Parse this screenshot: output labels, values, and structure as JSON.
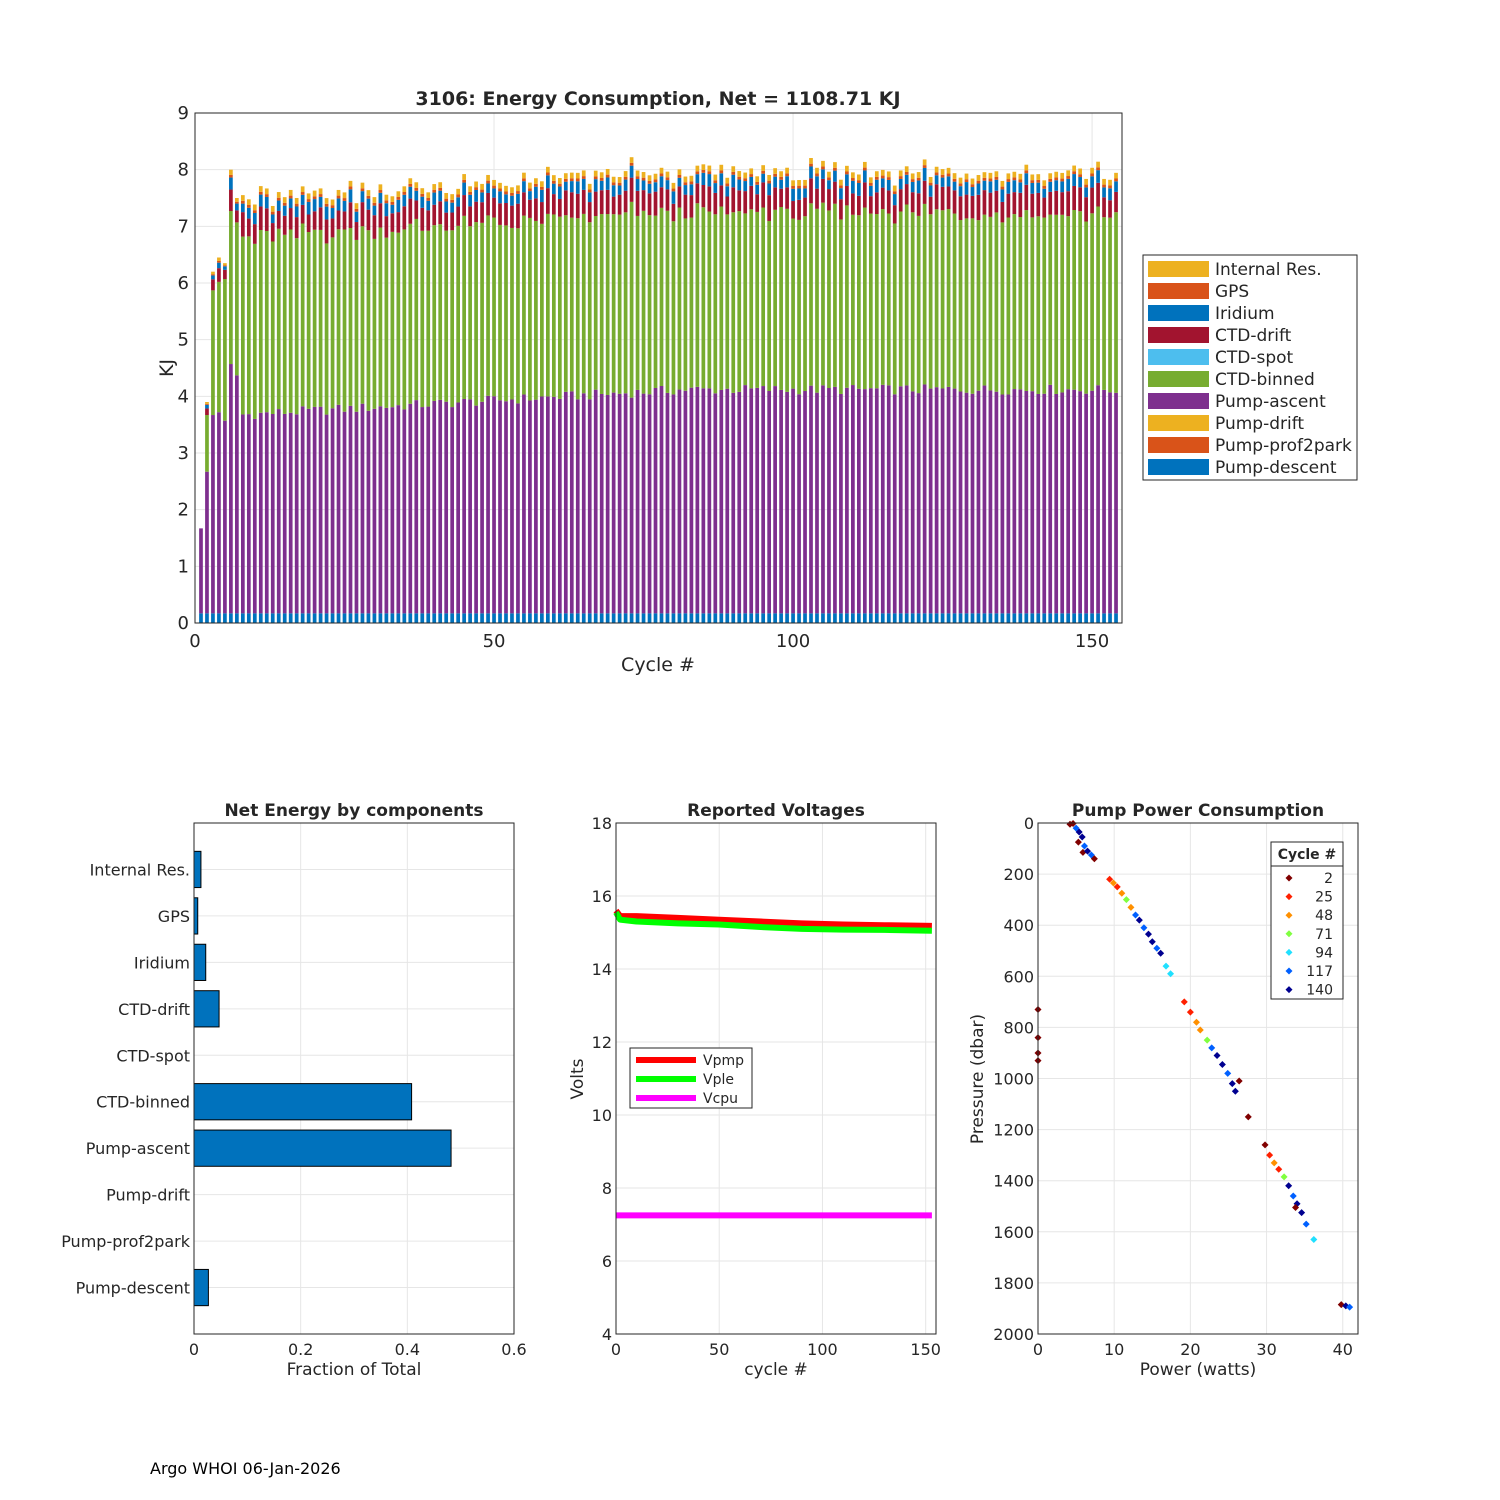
{
  "footer": "Argo WHOI 06-Jan-2026",
  "chart_data": [
    {
      "type": "bar",
      "stacked": true,
      "title": "3106: Energy Consumption,  Net = 1108.71 KJ",
      "xlabel": "Cycle #",
      "ylabel": "KJ",
      "xlim": [
        0,
        155
      ],
      "ylim": [
        0,
        9
      ],
      "xticks": [
        0,
        50,
        100,
        150
      ],
      "yticks": [
        0,
        1,
        2,
        3,
        4,
        5,
        6,
        7,
        8,
        9
      ],
      "grid": true,
      "legend_position": "right",
      "cycles": {
        "first": 1,
        "last": 154
      },
      "series": [
        {
          "name": "Pump-descent",
          "color": "#0072BD",
          "typical": 0.17
        },
        {
          "name": "Pump-prof2park",
          "color": "#D95319",
          "typical": 0.0
        },
        {
          "name": "Pump-drift",
          "color": "#EDB120",
          "typical": 0.0
        },
        {
          "name": "Pump-ascent",
          "color": "#7E2F8E",
          "typical": 3.75
        },
        {
          "name": "CTD-binned",
          "color": "#77AC30",
          "typical": 3.1
        },
        {
          "name": "CTD-spot",
          "color": "#4DBEEE",
          "typical": 0.0
        },
        {
          "name": "CTD-drift",
          "color": "#A2142F",
          "typical": 0.35
        },
        {
          "name": "Iridium",
          "color": "#0072BD",
          "typical": 0.17
        },
        {
          "name": "GPS",
          "color": "#D95319",
          "typical": 0.05
        },
        {
          "name": "Internal Res.",
          "color": "#EDB120",
          "typical": 0.1
        }
      ],
      "early_cycles": [
        {
          "cycle": 1,
          "pump_ascent": 1.5,
          "ctd_binned": 0.0,
          "total": 1.65
        },
        {
          "cycle": 2,
          "pump_ascent": 2.5,
          "ctd_binned": 1.0,
          "total": 3.9
        },
        {
          "cycle": 3,
          "pump_ascent": 3.5,
          "ctd_binned": 2.2,
          "total": 6.2
        },
        {
          "cycle": 4,
          "pump_ascent": 3.55,
          "ctd_binned": 2.3,
          "total": 6.45
        },
        {
          "cycle": 5,
          "pump_ascent": 3.4,
          "ctd_binned": 2.5,
          "total": 6.35
        },
        {
          "cycle": 6,
          "pump_ascent": 4.4,
          "ctd_binned": 2.7,
          "total": 8.0
        },
        {
          "cycle": 7,
          "pump_ascent": 4.2,
          "ctd_binned": 2.7,
          "total": 7.5
        }
      ],
      "notable_totals": [
        {
          "cycle": 73,
          "total": 8.22
        },
        {
          "cycle": 148,
          "total": 8.02
        }
      ]
    },
    {
      "type": "bar",
      "orientation": "horizontal",
      "title": "Net Energy by components",
      "xlabel": "Fraction of Total",
      "xlim": [
        0,
        0.6
      ],
      "xticks": [
        0,
        0.2,
        0.4,
        0.6
      ],
      "grid": true,
      "color": "#0072BD",
      "categories": [
        "Internal Res.",
        "GPS",
        "Iridium",
        "CTD-drift",
        "CTD-spot",
        "CTD-binned",
        "Pump-ascent",
        "Pump-drift",
        "Pump-prof2park",
        "Pump-descent"
      ],
      "values": [
        0.013,
        0.007,
        0.022,
        0.047,
        0.0,
        0.408,
        0.482,
        0.0,
        0.0,
        0.027
      ]
    },
    {
      "type": "line",
      "title": "Reported Voltages",
      "xlabel": "cycle #",
      "ylabel": "Volts",
      "xlim": [
        0,
        155
      ],
      "ylim": [
        4,
        18
      ],
      "xticks": [
        0,
        50,
        100,
        150
      ],
      "yticks": [
        4,
        6,
        8,
        10,
        12,
        14,
        16,
        18
      ],
      "grid": true,
      "legend_position": "center-left",
      "series": [
        {
          "name": "Vpmp",
          "color": "#FF0000",
          "x": [
            0,
            2,
            10,
            30,
            50,
            70,
            90,
            110,
            130,
            153
          ],
          "values": [
            15.6,
            15.45,
            15.45,
            15.4,
            15.35,
            15.3,
            15.25,
            15.22,
            15.2,
            15.18
          ]
        },
        {
          "name": "Vple",
          "color": "#00FF00",
          "x": [
            0,
            2,
            10,
            30,
            50,
            70,
            90,
            110,
            130,
            153
          ],
          "values": [
            15.55,
            15.35,
            15.3,
            15.25,
            15.22,
            15.15,
            15.1,
            15.08,
            15.07,
            15.05
          ]
        },
        {
          "name": "Vcpu",
          "color": "#FF00FF",
          "x": [
            0,
            50,
            100,
            153
          ],
          "values": [
            7.25,
            7.25,
            7.25,
            7.25
          ]
        }
      ]
    },
    {
      "type": "scatter",
      "title": "Pump Power Consumption",
      "xlabel": "Power (watts)",
      "ylabel": "Pressure (dbar)",
      "xlim": [
        0,
        42
      ],
      "ylim": [
        0,
        2000
      ],
      "y_reversed": true,
      "xticks": [
        0,
        10,
        20,
        30,
        40
      ],
      "yticks": [
        0,
        200,
        400,
        600,
        800,
        1000,
        1200,
        1400,
        1600,
        1800,
        2000
      ],
      "grid": true,
      "legend_title": "Cycle #",
      "legend_position": "top-right",
      "legend": [
        {
          "label": "2",
          "color": "#800000"
        },
        {
          "label": "25",
          "color": "#FF2000"
        },
        {
          "label": "48",
          "color": "#FF9000"
        },
        {
          "label": "71",
          "color": "#80FF40"
        },
        {
          "label": "94",
          "color": "#20E0FF"
        },
        {
          "label": "117",
          "color": "#0060FF"
        },
        {
          "label": "140",
          "color": "#000090"
        }
      ],
      "points": [
        {
          "power": 4.2,
          "pressure": 5,
          "color": "#800000"
        },
        {
          "power": 4.6,
          "pressure": 2,
          "color": "#800000"
        },
        {
          "power": 5.0,
          "pressure": 20,
          "color": "#0060FF"
        },
        {
          "power": 5.4,
          "pressure": 35,
          "color": "#000090"
        },
        {
          "power": 5.8,
          "pressure": 55,
          "color": "#000090"
        },
        {
          "power": 5.3,
          "pressure": 75,
          "color": "#800000"
        },
        {
          "power": 6.1,
          "pressure": 90,
          "color": "#0060FF"
        },
        {
          "power": 5.9,
          "pressure": 115,
          "color": "#800000"
        },
        {
          "power": 6.5,
          "pressure": 110,
          "color": "#000090"
        },
        {
          "power": 7.0,
          "pressure": 125,
          "color": "#0060FF"
        },
        {
          "power": 7.4,
          "pressure": 140,
          "color": "#800000"
        },
        {
          "power": 0.0,
          "pressure": 730,
          "color": "#800000"
        },
        {
          "power": 0.0,
          "pressure": 840,
          "color": "#800000"
        },
        {
          "power": 0.0,
          "pressure": 900,
          "color": "#800000"
        },
        {
          "power": 0.0,
          "pressure": 930,
          "color": "#800000"
        },
        {
          "power": 9.4,
          "pressure": 220,
          "color": "#FF2000"
        },
        {
          "power": 9.9,
          "pressure": 235,
          "color": "#FF9000"
        },
        {
          "power": 10.4,
          "pressure": 250,
          "color": "#FF2000"
        },
        {
          "power": 11.0,
          "pressure": 275,
          "color": "#FF9000"
        },
        {
          "power": 11.6,
          "pressure": 300,
          "color": "#80FF40"
        },
        {
          "power": 12.2,
          "pressure": 330,
          "color": "#FF9000"
        },
        {
          "power": 12.8,
          "pressure": 360,
          "color": "#0060FF"
        },
        {
          "power": 13.3,
          "pressure": 380,
          "color": "#000090"
        },
        {
          "power": 13.9,
          "pressure": 410,
          "color": "#0060FF"
        },
        {
          "power": 14.5,
          "pressure": 435,
          "color": "#000090"
        },
        {
          "power": 15.0,
          "pressure": 465,
          "color": "#000090"
        },
        {
          "power": 15.6,
          "pressure": 490,
          "color": "#0060FF"
        },
        {
          "power": 16.1,
          "pressure": 510,
          "color": "#000090"
        },
        {
          "power": 16.8,
          "pressure": 560,
          "color": "#20E0FF"
        },
        {
          "power": 17.4,
          "pressure": 590,
          "color": "#20E0FF"
        },
        {
          "power": 19.2,
          "pressure": 700,
          "color": "#FF2000"
        },
        {
          "power": 20.0,
          "pressure": 740,
          "color": "#FF2000"
        },
        {
          "power": 20.8,
          "pressure": 780,
          "color": "#FF9000"
        },
        {
          "power": 21.3,
          "pressure": 810,
          "color": "#FF9000"
        },
        {
          "power": 22.2,
          "pressure": 850,
          "color": "#80FF40"
        },
        {
          "power": 22.8,
          "pressure": 880,
          "color": "#0060FF"
        },
        {
          "power": 23.5,
          "pressure": 910,
          "color": "#000090"
        },
        {
          "power": 24.2,
          "pressure": 945,
          "color": "#000090"
        },
        {
          "power": 24.9,
          "pressure": 980,
          "color": "#0060FF"
        },
        {
          "power": 25.5,
          "pressure": 1020,
          "color": "#000090"
        },
        {
          "power": 26.4,
          "pressure": 1010,
          "color": "#800000"
        },
        {
          "power": 25.9,
          "pressure": 1050,
          "color": "#000090"
        },
        {
          "power": 27.6,
          "pressure": 1150,
          "color": "#800000"
        },
        {
          "power": 29.8,
          "pressure": 1260,
          "color": "#800000"
        },
        {
          "power": 30.4,
          "pressure": 1300,
          "color": "#FF2000"
        },
        {
          "power": 31.0,
          "pressure": 1330,
          "color": "#FF9000"
        },
        {
          "power": 31.6,
          "pressure": 1355,
          "color": "#FF2000"
        },
        {
          "power": 32.3,
          "pressure": 1385,
          "color": "#80FF40"
        },
        {
          "power": 32.9,
          "pressure": 1420,
          "color": "#000090"
        },
        {
          "power": 33.5,
          "pressure": 1460,
          "color": "#0060FF"
        },
        {
          "power": 34.0,
          "pressure": 1490,
          "color": "#000090"
        },
        {
          "power": 34.6,
          "pressure": 1525,
          "color": "#000090"
        },
        {
          "power": 33.8,
          "pressure": 1505,
          "color": "#800000"
        },
        {
          "power": 35.2,
          "pressure": 1570,
          "color": "#0060FF"
        },
        {
          "power": 36.2,
          "pressure": 1630,
          "color": "#20E0FF"
        },
        {
          "power": 39.8,
          "pressure": 1885,
          "color": "#800000"
        },
        {
          "power": 40.4,
          "pressure": 1890,
          "color": "#000090"
        },
        {
          "power": 40.9,
          "pressure": 1895,
          "color": "#0060FF"
        }
      ]
    }
  ]
}
